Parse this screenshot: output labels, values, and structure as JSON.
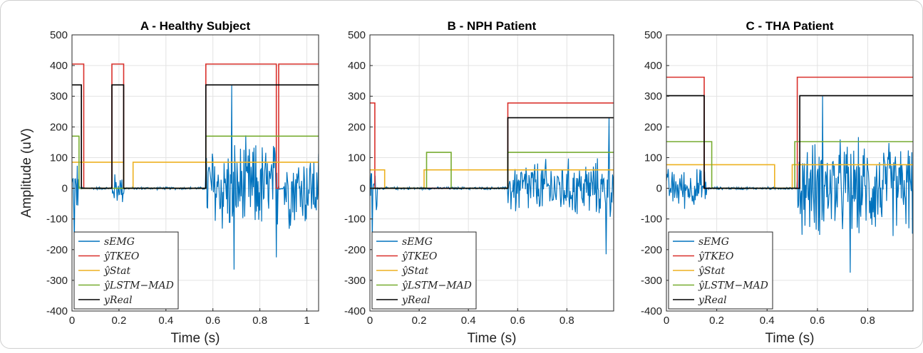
{
  "colors": {
    "sEMG": "#0072BD",
    "tkeo": "#D95319",
    "stat": "#EDB120",
    "lstm": "#77AC30",
    "real": "#000000"
  },
  "ylabel": "Amplitude (uV)",
  "legend": [
    {
      "key": "semg",
      "label": "sEMG",
      "color": "#0072BD"
    },
    {
      "key": "tkeo",
      "label": "ŷTKEO",
      "color": "#D9302B"
    },
    {
      "key": "stat",
      "label": "ŷStat",
      "color": "#EDB120"
    },
    {
      "key": "lstm",
      "label": "ŷLSTM−MAD",
      "color": "#77AC30"
    },
    {
      "key": "real",
      "label": "yReal",
      "color": "#000000"
    }
  ],
  "chart_data": [
    {
      "type": "line",
      "title": "A - Healthy Subject",
      "xlabel": "Time (s)",
      "ylabel": "Amplitude (uV)",
      "xlim": [
        0,
        1.05
      ],
      "ylim": [
        -400,
        500
      ],
      "xticks": [
        0,
        0.2,
        0.4,
        0.6,
        0.8,
        1
      ],
      "yticks": [
        -400,
        -300,
        -200,
        -100,
        0,
        100,
        200,
        300,
        400,
        500
      ],
      "grid": true,
      "legend_position": "bottom-left",
      "series": [
        {
          "name": "sEMG",
          "color": "#0072BD",
          "kind": "emg",
          "bursts": [
            [
              0,
              0.03,
              110
            ],
            [
              0.17,
              0.22,
              60
            ],
            [
              0.57,
              0.88,
              180
            ],
            [
              0.9,
              1.05,
              150
            ]
          ],
          "peaks": [
            [
              0.68,
              335
            ],
            [
              0.01,
              -180
            ],
            [
              0.69,
              -265
            ],
            [
              0.87,
              -225
            ]
          ]
        },
        {
          "name": "ŷTKEO",
          "color": "#D9302B",
          "kind": "step",
          "points": [
            [
              0,
              405
            ],
            [
              0.05,
              405
            ],
            [
              0.05,
              0
            ],
            [
              0.17,
              0
            ],
            [
              0.17,
              405
            ],
            [
              0.22,
              405
            ],
            [
              0.22,
              0
            ],
            [
              0.57,
              0
            ],
            [
              0.57,
              405
            ],
            [
              0.87,
              405
            ],
            [
              0.87,
              0
            ],
            [
              0.88,
              0
            ],
            [
              0.88,
              405
            ],
            [
              1.05,
              405
            ]
          ]
        },
        {
          "name": "ŷStat",
          "color": "#EDB120",
          "kind": "step",
          "points": [
            [
              0,
              85
            ],
            [
              0.22,
              85
            ],
            [
              0.22,
              0
            ],
            [
              0.26,
              0
            ],
            [
              0.26,
              85
            ],
            [
              1.05,
              85
            ]
          ]
        },
        {
          "name": "ŷLSTM−MAD",
          "color": "#77AC30",
          "kind": "step",
          "points": [
            [
              0,
              170
            ],
            [
              0.03,
              170
            ],
            [
              0.03,
              0
            ],
            [
              0.57,
              0
            ],
            [
              0.57,
              170
            ],
            [
              1.05,
              170
            ]
          ]
        },
        {
          "name": "yReal",
          "color": "#000000",
          "kind": "step",
          "points": [
            [
              0,
              337
            ],
            [
              0.04,
              337
            ],
            [
              0.04,
              0
            ],
            [
              0.17,
              0
            ],
            [
              0.17,
              337
            ],
            [
              0.22,
              337
            ],
            [
              0.22,
              0
            ],
            [
              0.57,
              0
            ],
            [
              0.57,
              337
            ],
            [
              1.05,
              337
            ]
          ]
        }
      ]
    },
    {
      "type": "line",
      "title": "B - NPH Patient",
      "xlabel": "Time (s)",
      "ylabel": "",
      "xlim": [
        0,
        0.99
      ],
      "ylim": [
        -400,
        500
      ],
      "xticks": [
        0,
        0.2,
        0.4,
        0.6,
        0.8
      ],
      "yticks": [
        -400,
        -300,
        -200,
        -100,
        0,
        100,
        200,
        300,
        400,
        500
      ],
      "grid": true,
      "legend_position": "bottom-left",
      "series": [
        {
          "name": "sEMG",
          "color": "#0072BD",
          "kind": "emg",
          "bursts": [
            [
              0,
              0.03,
              90
            ],
            [
              0.56,
              0.99,
              110
            ]
          ],
          "peaks": [
            [
              0.01,
              135
            ],
            [
              0.01,
              -175
            ],
            [
              0.97,
              230
            ],
            [
              0.96,
              -215
            ]
          ]
        },
        {
          "name": "ŷTKEO",
          "color": "#D9302B",
          "kind": "step",
          "points": [
            [
              0,
              278
            ],
            [
              0.02,
              278
            ],
            [
              0.02,
              0
            ],
            [
              0.56,
              0
            ],
            [
              0.56,
              278
            ],
            [
              0.99,
              278
            ]
          ]
        },
        {
          "name": "ŷStat",
          "color": "#EDB120",
          "kind": "step",
          "points": [
            [
              0,
              60
            ],
            [
              0.06,
              60
            ],
            [
              0.06,
              0
            ],
            [
              0.22,
              0
            ],
            [
              0.22,
              60
            ],
            [
              0.99,
              60
            ]
          ]
        },
        {
          "name": "ŷLSTM−MAD",
          "color": "#77AC30",
          "kind": "step",
          "points": [
            [
              0,
              0
            ],
            [
              0.23,
              0
            ],
            [
              0.23,
              117
            ],
            [
              0.33,
              117
            ],
            [
              0.33,
              0
            ],
            [
              0.56,
              0
            ],
            [
              0.56,
              117
            ],
            [
              0.99,
              117
            ]
          ]
        },
        {
          "name": "yReal",
          "color": "#000000",
          "kind": "step",
          "points": [
            [
              0,
              0
            ],
            [
              0.56,
              0
            ],
            [
              0.56,
              230
            ],
            [
              0.99,
              230
            ]
          ]
        }
      ]
    },
    {
      "type": "line",
      "title": "C - THA Patient",
      "xlabel": "Time (s)",
      "ylabel": "",
      "xlim": [
        0,
        0.98
      ],
      "ylim": [
        -400,
        500
      ],
      "xticks": [
        0,
        0.2,
        0.4,
        0.6,
        0.8
      ],
      "yticks": [
        -400,
        -300,
        -200,
        -100,
        0,
        100,
        200,
        300,
        400,
        500
      ],
      "grid": true,
      "legend_position": "bottom-left",
      "series": [
        {
          "name": "sEMG",
          "color": "#0072BD",
          "kind": "emg",
          "bursts": [
            [
              0,
              0.16,
              75
            ],
            [
              0.52,
              0.98,
              180
            ]
          ],
          "peaks": [
            [
              0.62,
              300
            ],
            [
              0.73,
              -275
            ]
          ]
        },
        {
          "name": "ŷTKEO",
          "color": "#D9302B",
          "kind": "step",
          "points": [
            [
              0,
              362
            ],
            [
              0.15,
              362
            ],
            [
              0.15,
              0
            ],
            [
              0.52,
              0
            ],
            [
              0.52,
              362
            ],
            [
              0.98,
              362
            ]
          ]
        },
        {
          "name": "ŷStat",
          "color": "#EDB120",
          "kind": "step",
          "points": [
            [
              0,
              77
            ],
            [
              0.43,
              77
            ],
            [
              0.43,
              0
            ],
            [
              0.5,
              0
            ],
            [
              0.5,
              77
            ],
            [
              0.98,
              77
            ]
          ]
        },
        {
          "name": "ŷLSTM−MAD",
          "color": "#77AC30",
          "kind": "step",
          "points": [
            [
              0,
              152
            ],
            [
              0.18,
              152
            ],
            [
              0.18,
              0
            ],
            [
              0.51,
              0
            ],
            [
              0.51,
              152
            ],
            [
              0.98,
              152
            ]
          ]
        },
        {
          "name": "yReal",
          "color": "#000000",
          "kind": "step",
          "points": [
            [
              0,
              302
            ],
            [
              0.15,
              302
            ],
            [
              0.15,
              0
            ],
            [
              0.53,
              0
            ],
            [
              0.53,
              302
            ],
            [
              0.98,
              302
            ]
          ]
        }
      ]
    }
  ]
}
